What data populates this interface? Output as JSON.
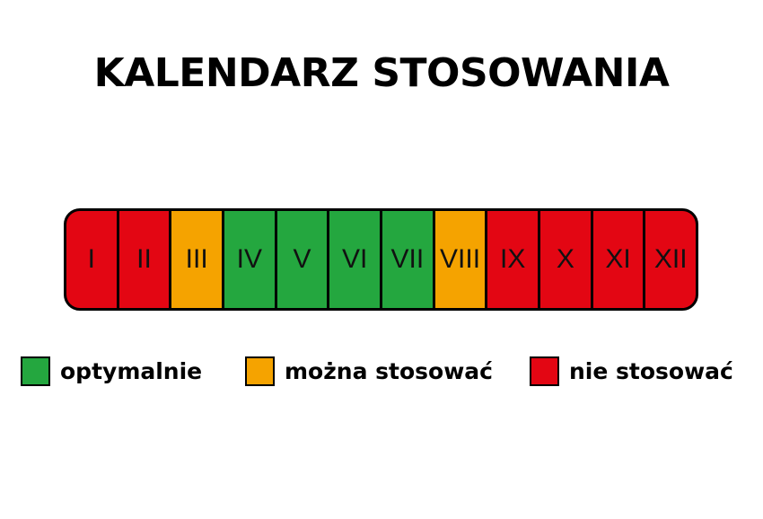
{
  "title": "KALENDARZ STOSOWANIA",
  "colors": {
    "optimal": "#24a73f",
    "possible": "#f5a300",
    "no": "#e30613"
  },
  "months": [
    {
      "label": "I",
      "status": "no"
    },
    {
      "label": "II",
      "status": "no"
    },
    {
      "label": "III",
      "status": "possible"
    },
    {
      "label": "IV",
      "status": "optimal"
    },
    {
      "label": "V",
      "status": "optimal"
    },
    {
      "label": "VI",
      "status": "optimal"
    },
    {
      "label": "VII",
      "status": "optimal"
    },
    {
      "label": "VIII",
      "status": "possible"
    },
    {
      "label": "IX",
      "status": "no"
    },
    {
      "label": "X",
      "status": "no"
    },
    {
      "label": "XI",
      "status": "no"
    },
    {
      "label": "XII",
      "status": "no"
    }
  ],
  "legend": [
    {
      "status": "optimal",
      "label": "optymalnie"
    },
    {
      "status": "possible",
      "label": "można stosować"
    },
    {
      "status": "no",
      "label": "nie stosować"
    }
  ]
}
